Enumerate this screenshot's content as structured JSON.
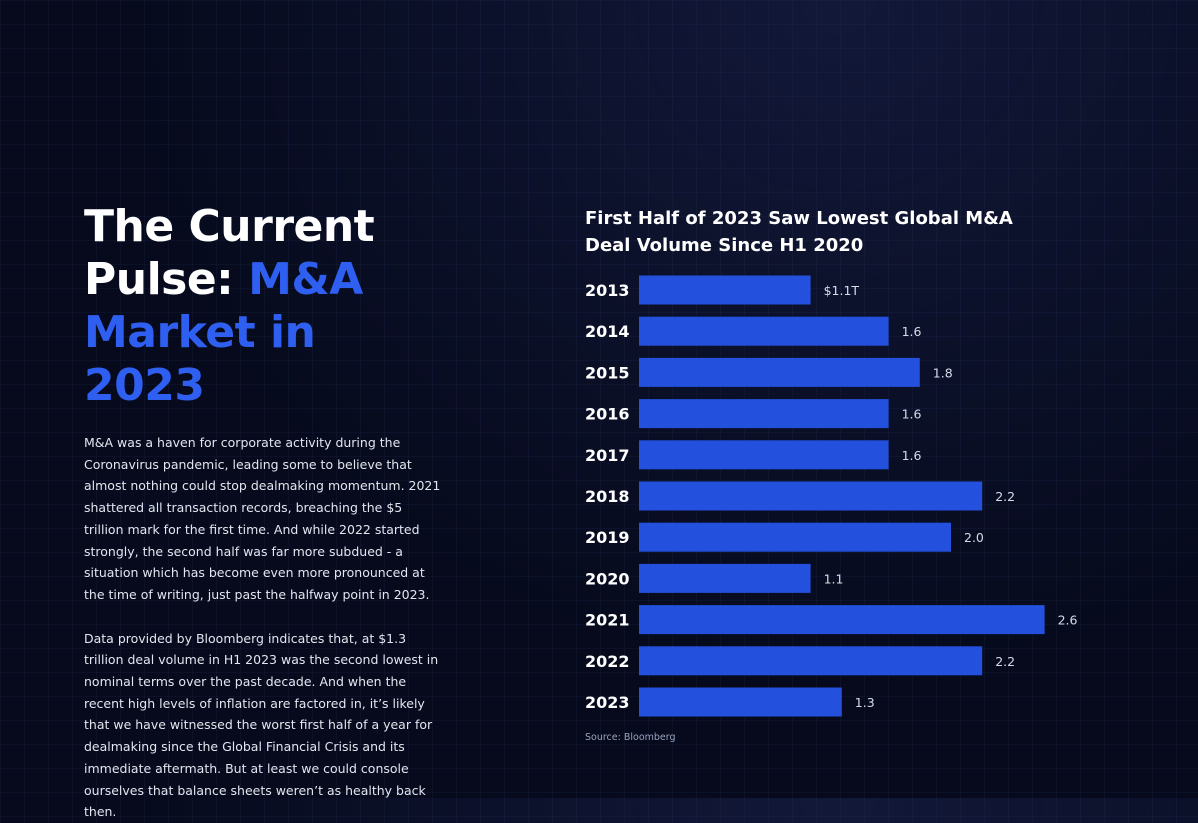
{
  "headline": {
    "line1": "The Current",
    "line2_white": "Pulse: ",
    "line2_blue": "M&A",
    "line3": "Market in 2023"
  },
  "body": {
    "paragraph1": "M&A was a haven for corporate activity during the Coronavirus pandemic, leading some to believe that almost nothing could stop dealmaking momentum. 2021 shattered all transaction records, breaching the $5 trillion mark for the first time. And while 2022 started strongly, the second half was  far more subdued - a situation which has become even more pronounced at the time of writing, just past the halfway point in 2023.",
    "paragraph2": "Data provided by Bloomberg indicates that, at $1.3 trillion deal volume in H1 2023 was the second lowest in nominal terms over the past decade. And when the recent high levels of inflation are factored in, it’s likely that we have witnessed the worst first half of a year for dealmaking since the Global Financial Crisis and its immediate aftermath. But at least we could console ourselves that balance sheets weren’t as healthy back then."
  },
  "chart_data": {
    "type": "bar",
    "orientation": "horizontal",
    "title": "First Half of 2023 Saw Lowest Global M&A Deal Volume Since H1 2020",
    "categories": [
      "2013",
      "2014",
      "2015",
      "2016",
      "2017",
      "2018",
      "2019",
      "2020",
      "2021",
      "2022",
      "2023"
    ],
    "values": [
      1.1,
      1.6,
      1.8,
      1.6,
      1.6,
      2.2,
      2.0,
      1.1,
      2.6,
      2.2,
      1.3
    ],
    "value_labels": [
      "$1.1T",
      "1.6",
      "1.8",
      "1.6",
      "1.6",
      "2.2",
      "2.0",
      "1.1",
      "2.6",
      "2.2",
      "1.3"
    ],
    "xlabel": "",
    "ylabel": "",
    "grid": false,
    "bar_color": "#2350dc",
    "source": "Source: Bloomberg"
  },
  "colors": {
    "background": "#060a1c",
    "accent_blue": "#2f5ff0",
    "bar": "#2350dc",
    "text": "#ffffff"
  }
}
